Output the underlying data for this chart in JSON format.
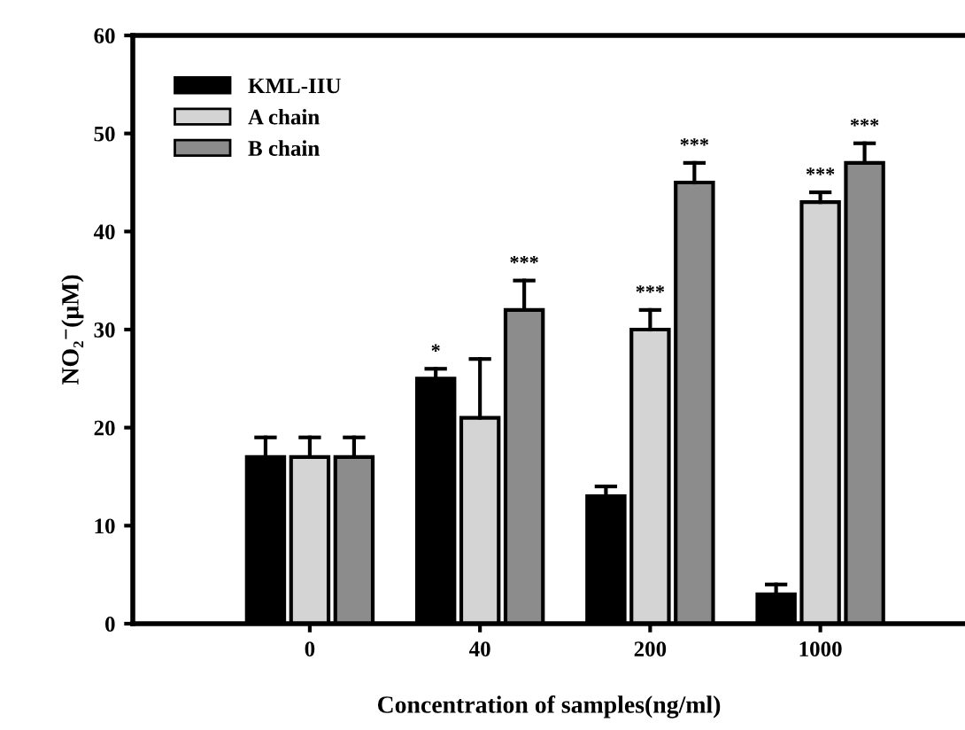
{
  "chart_data": {
    "type": "bar",
    "xlabel": "Concentration of samples(ng/ml)",
    "ylabel": "NO₂⁻(μM)",
    "categories": [
      "0",
      "40",
      "200",
      "1000"
    ],
    "series": [
      {
        "name": "KML-IIU",
        "color": "#000000",
        "values": [
          17,
          25,
          13,
          3
        ],
        "value_labels": [
          null,
          "*",
          null,
          null
        ],
        "errors": [
          [
            17,
            19
          ],
          [
            25,
            26
          ],
          [
            13,
            14
          ],
          [
            3,
            4
          ]
        ]
      },
      {
        "name": "A chain",
        "color": "#d4d4d4",
        "values": [
          17,
          21,
          30,
          43
        ],
        "value_labels": [
          null,
          null,
          "***",
          "***"
        ],
        "errors": [
          [
            17,
            19
          ],
          [
            21,
            27
          ],
          [
            30,
            32
          ],
          [
            43,
            44
          ]
        ]
      },
      {
        "name": "B chain",
        "color": "#8c8c8c",
        "values": [
          17,
          32,
          45,
          47
        ],
        "value_labels": [
          null,
          "***",
          "***",
          "***"
        ],
        "errors": [
          [
            17,
            19
          ],
          [
            32,
            35
          ],
          [
            45,
            47
          ],
          [
            47,
            49
          ]
        ]
      }
    ],
    "ylim": [
      0,
      60
    ],
    "yticks": [
      0,
      10,
      20,
      30,
      40,
      50,
      60
    ],
    "legend": "top left",
    "grid": false
  }
}
